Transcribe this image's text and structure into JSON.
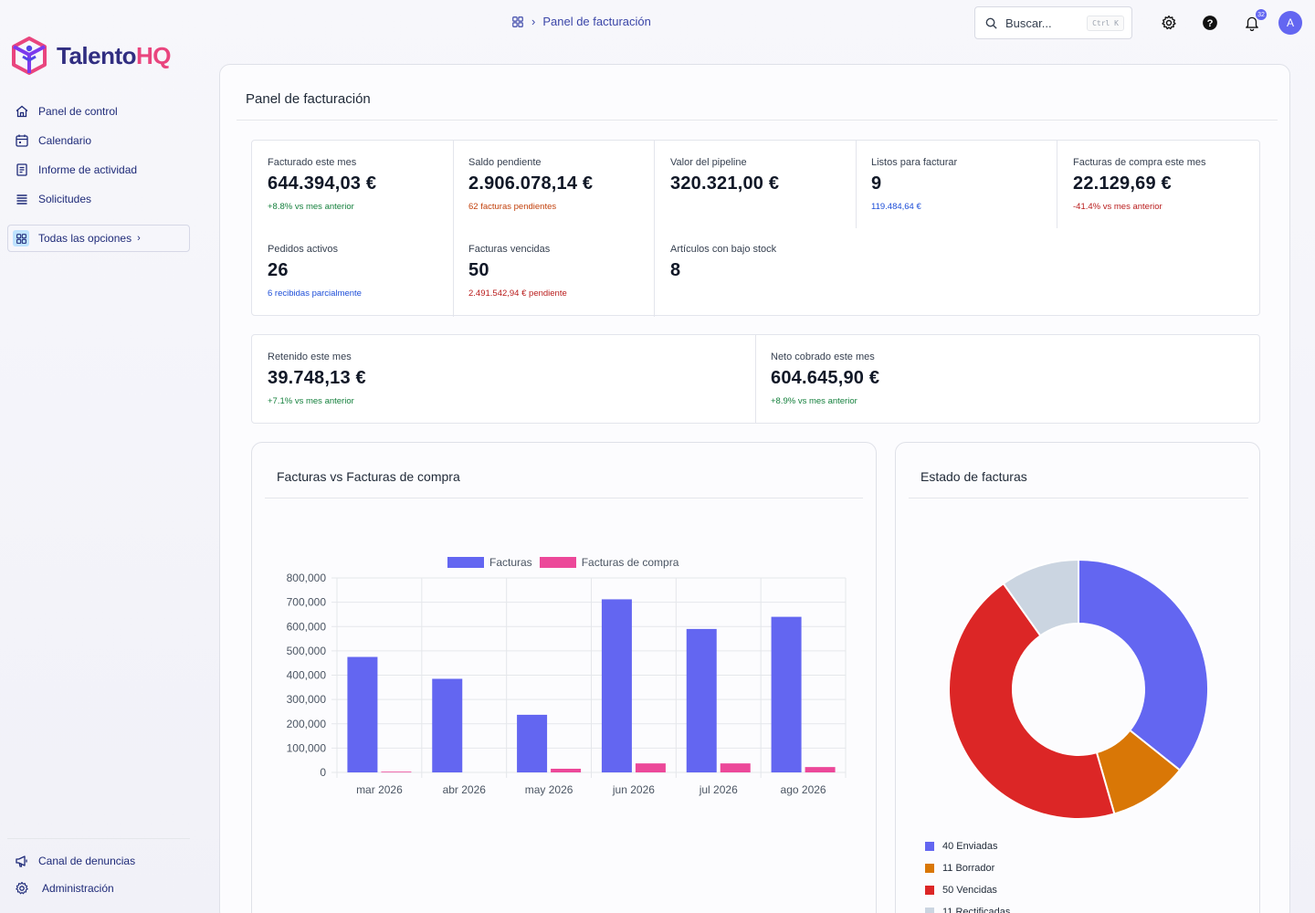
{
  "app": {
    "logo_main": "Talento",
    "logo_accent": "HQ"
  },
  "breadcrumb": {
    "current": "Panel de facturación"
  },
  "search": {
    "placeholder": "Buscar...",
    "shortcut": "Ctrl K"
  },
  "notifications": {
    "count": "32"
  },
  "user": {
    "initial": "A"
  },
  "sidebar": {
    "items": [
      {
        "label": "Panel de control",
        "icon": "home-icon"
      },
      {
        "label": "Calendario",
        "icon": "calendar-icon"
      },
      {
        "label": "Informe de actividad",
        "icon": "report-icon"
      },
      {
        "label": "Solicitudes",
        "icon": "list-icon"
      }
    ],
    "all_options": "Todas las opciones",
    "bottom": [
      {
        "label": "Canal de denuncias",
        "icon": "megaphone-icon"
      },
      {
        "label": "Administración",
        "icon": "gear-icon"
      }
    ]
  },
  "page": {
    "title": "Panel de facturación"
  },
  "kpis": [
    {
      "label": "Facturado este mes",
      "value": "644.394,03 €",
      "sub": "+8.8% vs mes anterior"
    },
    {
      "label": "Saldo pendiente",
      "value": "2.906.078,14 €",
      "sub": "62 facturas pendientes"
    },
    {
      "label": "Valor del pipeline",
      "value": "320.321,00 €",
      "sub": ""
    },
    {
      "label": "Listos para facturar",
      "value": "9",
      "sub": "119.484,64 €"
    },
    {
      "label": "Facturas de compra este mes",
      "value": "22.129,69 €",
      "sub": "-41.4% vs mes anterior"
    },
    {
      "label": "Pedidos activos",
      "value": "26",
      "sub": "6 recibidas parcialmente"
    },
    {
      "label": "Facturas vencidas",
      "value": "50",
      "sub": "2.491.542,94 € pendiente"
    },
    {
      "label": "Artículos con bajo stock",
      "value": "8",
      "sub": ""
    }
  ],
  "kpis2": [
    {
      "label": "Retenido este mes",
      "value": "39.748,13 €",
      "sub": "+7.1% vs mes anterior"
    },
    {
      "label": "Neto cobrado este mes",
      "value": "604.645,90 €",
      "sub": "+8.9% vs mes anterior"
    }
  ],
  "bar_card": {
    "title": "Facturas vs Facturas de compra"
  },
  "donut_card": {
    "title": "Estado de facturas"
  },
  "chart_data": [
    {
      "type": "bar",
      "title": "Facturas vs Facturas de compra",
      "categories": [
        "mar 2026",
        "abr 2026",
        "may 2026",
        "jun 2026",
        "jul 2026",
        "ago 2026"
      ],
      "series": [
        {
          "name": "Facturas",
          "color": "#6366f1",
          "values": [
            475000,
            385000,
            237000,
            712000,
            590000,
            640000
          ]
        },
        {
          "name": "Facturas de compra",
          "color": "#ec4899",
          "values": [
            3000,
            0,
            15000,
            37000,
            37000,
            22000
          ]
        }
      ],
      "ylim": [
        0,
        800000
      ],
      "yticks": [
        "0",
        "100,000",
        "200,000",
        "300,000",
        "400,000",
        "500,000",
        "600,000",
        "700,000",
        "800,000"
      ],
      "legend": "top",
      "grid": true
    },
    {
      "type": "pie",
      "title": "Estado de facturas",
      "variant": "donut",
      "slices": [
        {
          "label": "Enviadas",
          "value": 40,
          "color": "#6366f1"
        },
        {
          "label": "Borrador",
          "value": 11,
          "color": "#d97706"
        },
        {
          "label": "Vencidas",
          "value": 50,
          "color": "#dc2626"
        },
        {
          "label": "Rectificadas",
          "value": 11,
          "color": "#cbd5e1"
        }
      ],
      "legend": "bottom"
    }
  ]
}
